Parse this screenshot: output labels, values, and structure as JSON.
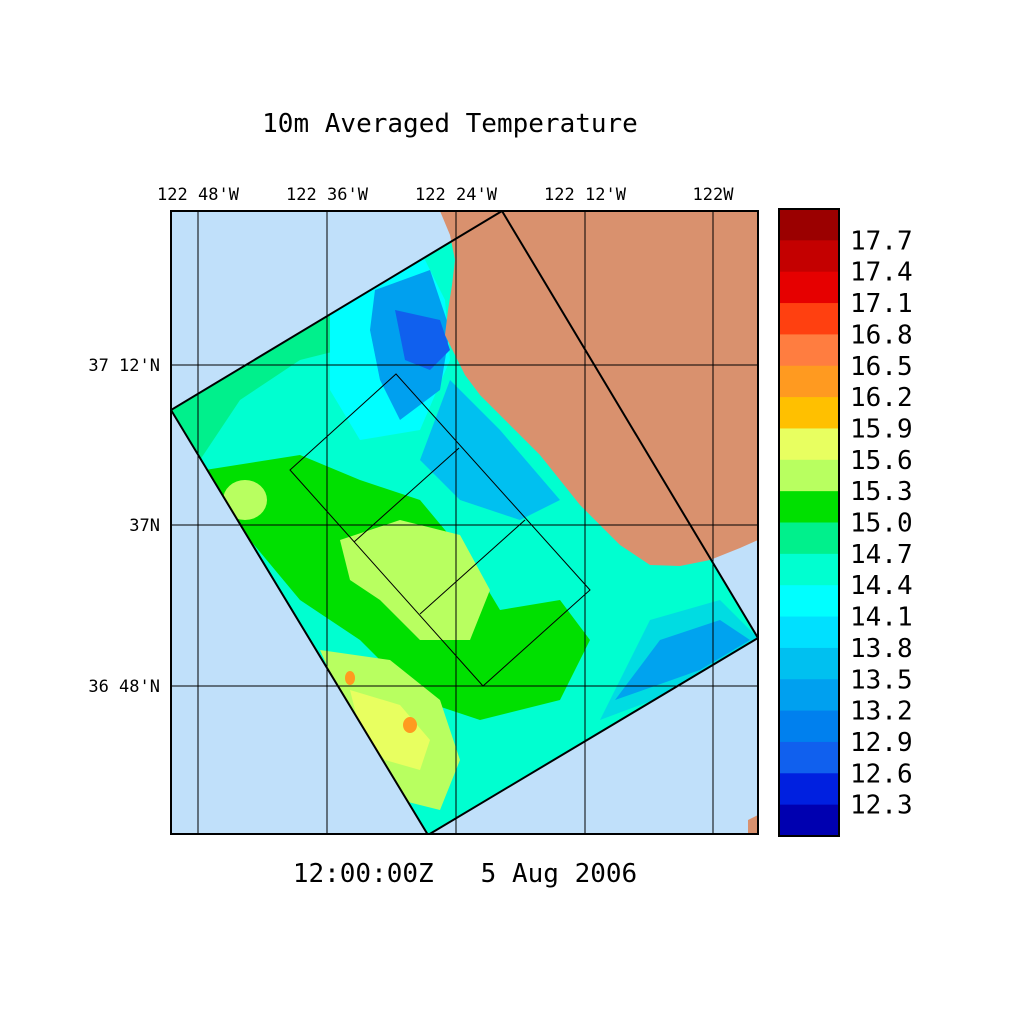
{
  "title": "10m Averaged Temperature",
  "timestamp": "12:00:00Z   5 Aug 2006",
  "lon_ticks": [
    {
      "label": "122 48'W",
      "lon": -122.8
    },
    {
      "label": "122 36'W",
      "lon": -122.6
    },
    {
      "label": "122 24'W",
      "lon": -122.4
    },
    {
      "label": "122 12'W",
      "lon": -122.2
    },
    {
      "label": "122W",
      "lon": -122.0
    }
  ],
  "lat_ticks": [
    {
      "label": "37 12'N",
      "lat": 37.2
    },
    {
      "label": "37N",
      "lat": 37.0
    },
    {
      "label": "36 48'N",
      "lat": 36.8
    }
  ],
  "colorbar": {
    "levels": [
      "17.7",
      "17.4",
      "17.1",
      "16.8",
      "16.5",
      "16.2",
      "15.9",
      "15.6",
      "15.3",
      "15.0",
      "14.7",
      "14.4",
      "14.1",
      "13.8",
      "13.5",
      "13.2",
      "12.9",
      "12.6",
      "12.3"
    ],
    "colors": [
      "#9b0000",
      "#c40000",
      "#e60000",
      "#ff4010",
      "#ff7d40",
      "#ff9a20",
      "#ffc000",
      "#e8ff60",
      "#b8ff60",
      "#00e000",
      "#00f08c",
      "#00ffd0",
      "#00ffff",
      "#00e0ff",
      "#00c0f0",
      "#00a0ef",
      "#0080ee",
      "#1060ee",
      "#0020e0",
      "#0000b0"
    ]
  },
  "colors": {
    "ocean": "#c0e0fa",
    "land": "#d9916e"
  }
}
